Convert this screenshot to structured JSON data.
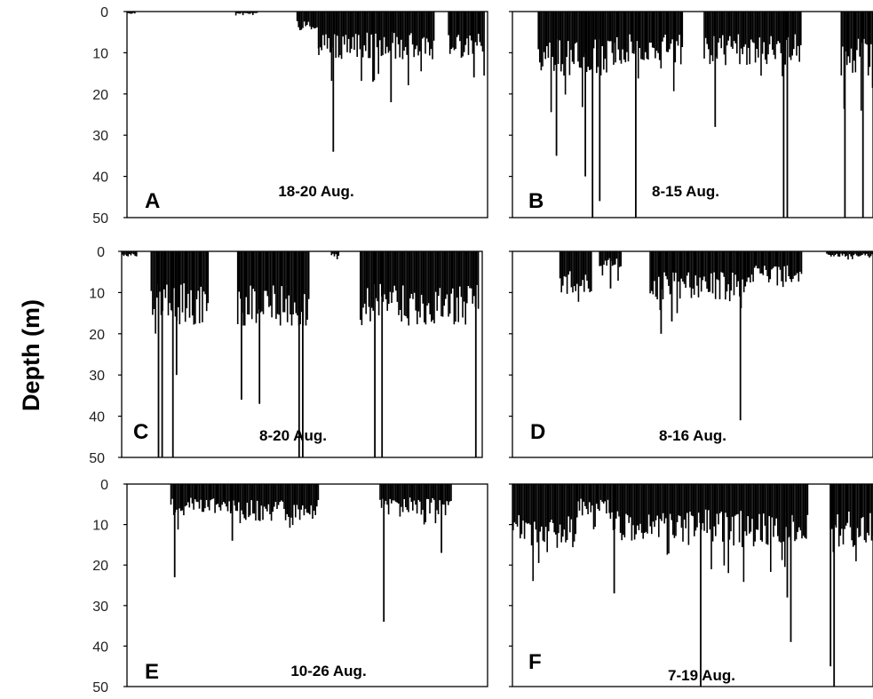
{
  "ylabel": "Depth (m)",
  "colors": {
    "bars": "#000000",
    "axis": "#000000",
    "background": "#ffffff"
  },
  "chart_data": [
    {
      "type": "bar",
      "panel": "A",
      "date_range": "18-20 Aug.",
      "ylabel": "Depth (m)",
      "ylim": [
        0,
        50
      ],
      "yticks": [
        0,
        10,
        20,
        30,
        40,
        50
      ],
      "y_inverted": true,
      "grid": false,
      "segments": [
        {
          "x_range": [
            0.0,
            0.02
          ],
          "typical_depth": 0.5,
          "max_depth": 1
        },
        {
          "x_range": [
            0.3,
            0.36
          ],
          "typical_depth": 0.5,
          "max_depth": 1
        },
        {
          "x_range": [
            0.47,
            0.53
          ],
          "typical_depth": 4,
          "max_depth": 9
        },
        {
          "x_range": [
            0.53,
            0.85
          ],
          "typical_depth": 9,
          "max_depth": 18
        },
        {
          "x_range": [
            0.89,
            0.99
          ],
          "typical_depth": 9,
          "max_depth": 16
        }
      ],
      "spikes": [
        [
          0.57,
          34
        ],
        [
          0.73,
          22
        ],
        [
          0.68,
          17
        ],
        [
          0.96,
          16
        ]
      ]
    },
    {
      "type": "bar",
      "panel": "B",
      "date_range": "8-15 Aug.",
      "ylabel": "",
      "ylim": [
        0,
        50
      ],
      "yticks": [
        0,
        10,
        20,
        30,
        40,
        50
      ],
      "y_inverted": true,
      "grid": false,
      "segments": [
        {
          "x_range": [
            0.07,
            0.28
          ],
          "typical_depth": 12,
          "max_depth": 25
        },
        {
          "x_range": [
            0.28,
            0.47
          ],
          "typical_depth": 10,
          "max_depth": 20
        },
        {
          "x_range": [
            0.53,
            0.8
          ],
          "typical_depth": 10,
          "max_depth": 22
        },
        {
          "x_range": [
            0.91,
            1.0
          ],
          "typical_depth": 12,
          "max_depth": 30
        }
      ],
      "spikes": [
        [
          0.12,
          35
        ],
        [
          0.2,
          40
        ],
        [
          0.22,
          50
        ],
        [
          0.24,
          46
        ],
        [
          0.34,
          50
        ],
        [
          0.56,
          28
        ],
        [
          0.75,
          50
        ],
        [
          0.76,
          50
        ],
        [
          0.92,
          50
        ],
        [
          0.97,
          50
        ]
      ]
    },
    {
      "type": "bar",
      "panel": "C",
      "date_range": "8-20   Aug.",
      "ylabel": "",
      "ylim": [
        0,
        50
      ],
      "yticks": [
        0,
        10,
        20,
        30,
        40,
        50
      ],
      "y_inverted": true,
      "grid": false,
      "segments": [
        {
          "x_range": [
            0.0,
            0.04
          ],
          "typical_depth": 1,
          "max_depth": 2
        },
        {
          "x_range": [
            0.08,
            0.24
          ],
          "typical_depth": 14,
          "max_depth": 20
        },
        {
          "x_range": [
            0.32,
            0.52
          ],
          "typical_depth": 15,
          "max_depth": 18
        },
        {
          "x_range": [
            0.58,
            0.6
          ],
          "typical_depth": 1,
          "max_depth": 2
        },
        {
          "x_range": [
            0.66,
            0.99
          ],
          "typical_depth": 14,
          "max_depth": 18
        }
      ],
      "spikes": [
        [
          0.1,
          50
        ],
        [
          0.11,
          50
        ],
        [
          0.14,
          50
        ],
        [
          0.15,
          30
        ],
        [
          0.33,
          36
        ],
        [
          0.38,
          37
        ],
        [
          0.49,
          50
        ],
        [
          0.5,
          50
        ],
        [
          0.7,
          50
        ],
        [
          0.72,
          50
        ],
        [
          0.98,
          50
        ]
      ]
    },
    {
      "type": "bar",
      "panel": "D",
      "date_range": "8-16 Aug.",
      "ylabel": "",
      "ylim": [
        0,
        50
      ],
      "yticks": [
        0,
        10,
        20,
        30,
        40,
        50
      ],
      "y_inverted": true,
      "grid": false,
      "segments": [
        {
          "x_range": [
            0.13,
            0.22
          ],
          "typical_depth": 8,
          "max_depth": 15
        },
        {
          "x_range": [
            0.24,
            0.3
          ],
          "typical_depth": 3,
          "max_depth": 8
        },
        {
          "x_range": [
            0.38,
            0.65
          ],
          "typical_depth": 9,
          "max_depth": 15
        },
        {
          "x_range": [
            0.65,
            0.8
          ],
          "typical_depth": 6,
          "max_depth": 12
        },
        {
          "x_range": [
            0.87,
            1.0
          ],
          "typical_depth": 1,
          "max_depth": 2
        }
      ],
      "spikes": [
        [
          0.41,
          20
        ],
        [
          0.63,
          41
        ],
        [
          0.44,
          17
        ],
        [
          0.27,
          9
        ]
      ]
    },
    {
      "type": "bar",
      "panel": "E",
      "date_range": "10-26 Aug.",
      "ylabel": "",
      "ylim": [
        0,
        50
      ],
      "yticks": [
        0,
        10,
        20,
        30,
        40,
        50
      ],
      "y_inverted": true,
      "grid": false,
      "segments": [
        {
          "x_range": [
            0.12,
            0.3
          ],
          "typical_depth": 6,
          "max_depth": 12
        },
        {
          "x_range": [
            0.3,
            0.53
          ],
          "typical_depth": 7,
          "max_depth": 12
        },
        {
          "x_range": [
            0.7,
            0.9
          ],
          "typical_depth": 6,
          "max_depth": 10
        }
      ],
      "spikes": [
        [
          0.13,
          23
        ],
        [
          0.29,
          14
        ],
        [
          0.71,
          34
        ],
        [
          0.87,
          17
        ]
      ]
    },
    {
      "type": "bar",
      "panel": "F",
      "date_range": "7-19 Aug.",
      "ylabel": "",
      "ylim": [
        0,
        50
      ],
      "yticks": [
        0,
        10,
        20,
        30,
        40,
        50
      ],
      "y_inverted": true,
      "grid": false,
      "segments": [
        {
          "x_range": [
            0.0,
            0.18
          ],
          "typical_depth": 13,
          "max_depth": 24
        },
        {
          "x_range": [
            0.18,
            0.27
          ],
          "typical_depth": 6,
          "max_depth": 12
        },
        {
          "x_range": [
            0.27,
            0.6
          ],
          "typical_depth": 11,
          "max_depth": 22
        },
        {
          "x_range": [
            0.6,
            0.82
          ],
          "typical_depth": 12,
          "max_depth": 25
        },
        {
          "x_range": [
            0.88,
            1.0
          ],
          "typical_depth": 12,
          "max_depth": 20
        }
      ],
      "spikes": [
        [
          0.28,
          27
        ],
        [
          0.52,
          50
        ],
        [
          0.77,
          39
        ],
        [
          0.76,
          28
        ],
        [
          0.88,
          45
        ],
        [
          0.89,
          50
        ]
      ]
    }
  ]
}
